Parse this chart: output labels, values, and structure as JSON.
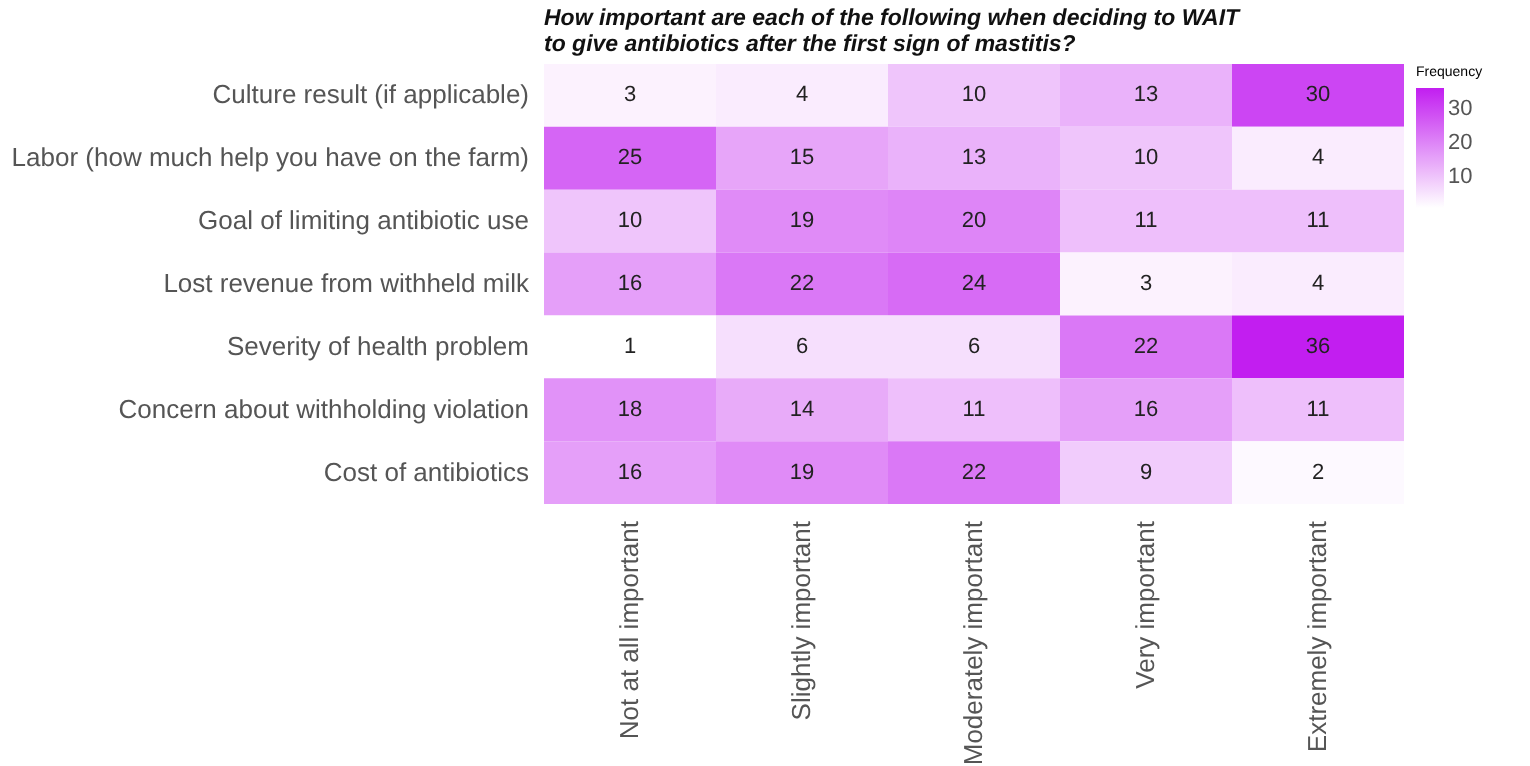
{
  "chart_data": {
    "type": "heatmap",
    "title": "How important are each of the following when deciding to WAIT\nto give antibiotics after the first sign of mastitis?",
    "categories": [
      "Not at all important",
      "Slightly important",
      "Moderately important",
      "Very important",
      "Extremely important"
    ],
    "y_categories": [
      "Culture result (if applicable)",
      "Labor (how much help you have on the farm)",
      "Goal of limiting antibiotic use",
      "Lost revenue from withheld milk",
      "Severity of health problem",
      "Concern about withholding violation",
      "Cost of antibiotics"
    ],
    "cells": [
      [
        3,
        4,
        10,
        13,
        30
      ],
      [
        25,
        15,
        13,
        10,
        4
      ],
      [
        10,
        19,
        20,
        11,
        11
      ],
      [
        16,
        22,
        24,
        3,
        4
      ],
      [
        1,
        6,
        6,
        22,
        36
      ],
      [
        18,
        14,
        11,
        16,
        11
      ],
      [
        16,
        19,
        22,
        9,
        2
      ]
    ],
    "clabel": "Frequency",
    "clim": [
      1,
      36
    ],
    "cticks": [
      10,
      20,
      30
    ],
    "colors": [
      "#ffffff",
      "#c21ef0"
    ],
    "data_labels": true
  }
}
